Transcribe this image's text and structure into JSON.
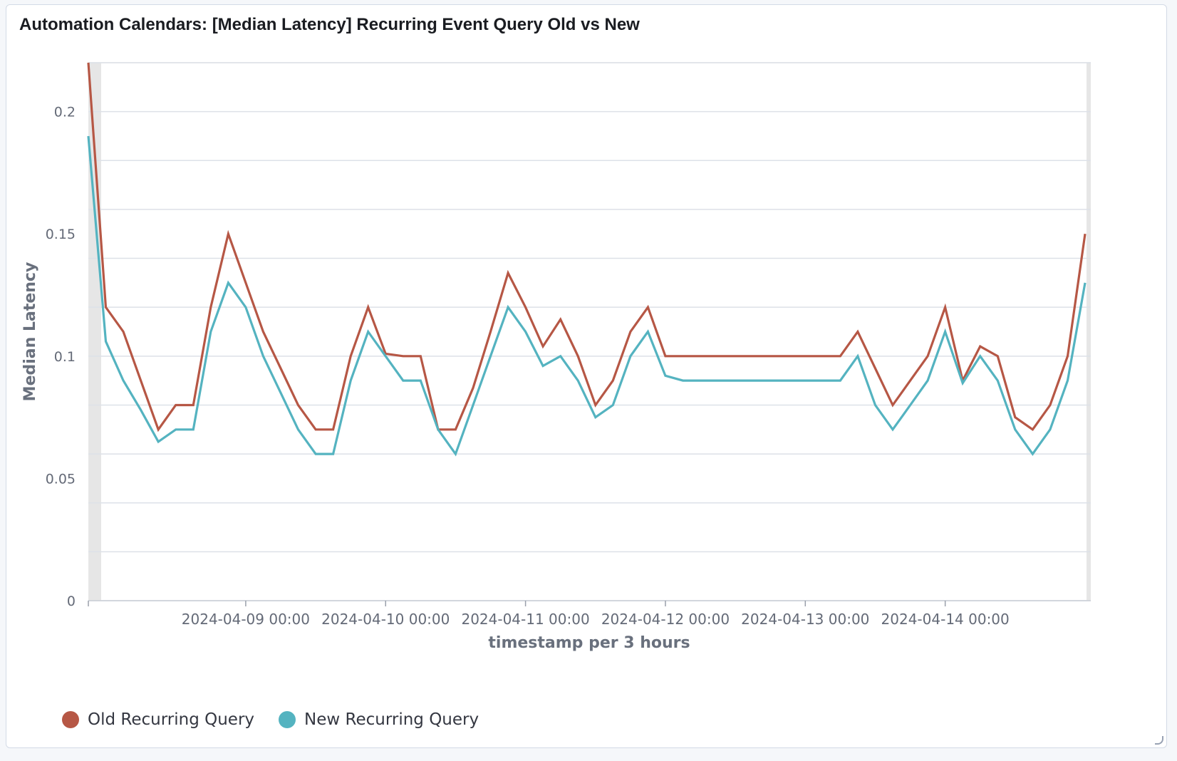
{
  "panel": {
    "title": "Automation Calendars: [Median Latency] Recurring Event Query Old vs New"
  },
  "chart_data": {
    "type": "line",
    "title": "Automation Calendars: [Median Latency] Recurring Event Query Old vs New",
    "xlabel": "timestamp per 3 hours",
    "ylabel": "Median Latency",
    "x_unit": "3 hours",
    "x_start": "2024-04-07 21:00",
    "x_ticks": [
      "2024-04-09 00:00",
      "2024-04-10 00:00",
      "2024-04-11 00:00",
      "2024-04-12 00:00",
      "2024-04-13 00:00",
      "2024-04-14 00:00"
    ],
    "y_ticks": [
      0,
      0.05,
      0.1,
      0.15,
      0.2
    ],
    "y_tick_labels": [
      "0",
      "0.05",
      "0.1",
      "0.15",
      "0.2"
    ],
    "ylim": [
      0,
      0.22
    ],
    "grid": true,
    "legend_position": "bottom-left",
    "series": [
      {
        "name": "Old Recurring Query",
        "color": "#b65745",
        "values": [
          0.22,
          0.12,
          0.11,
          0.09,
          0.07,
          0.08,
          0.08,
          0.12,
          0.15,
          0.13,
          0.11,
          0.095,
          0.08,
          0.07,
          0.07,
          0.1,
          0.12,
          0.101,
          0.1,
          0.1,
          0.07,
          0.07,
          0.087,
          0.11,
          0.134,
          0.12,
          0.104,
          0.115,
          0.1,
          0.08,
          0.09,
          0.11,
          0.12,
          0.1,
          0.1,
          0.1,
          0.1,
          0.1,
          0.1,
          0.1,
          0.1,
          0.1,
          0.1,
          0.1,
          0.11,
          0.095,
          0.08,
          0.09,
          0.1,
          0.12,
          0.09,
          0.104,
          0.1,
          0.075,
          0.07,
          0.08,
          0.1,
          0.15
        ]
      },
      {
        "name": "New Recurring Query",
        "color": "#54b3c0",
        "values": [
          0.19,
          0.106,
          0.09,
          0.078,
          0.065,
          0.07,
          0.07,
          0.11,
          0.13,
          0.12,
          0.1,
          0.085,
          0.07,
          0.06,
          0.06,
          0.09,
          0.11,
          0.1,
          0.09,
          0.09,
          0.07,
          0.06,
          0.08,
          0.1,
          0.12,
          0.11,
          0.096,
          0.1,
          0.09,
          0.075,
          0.08,
          0.1,
          0.11,
          0.092,
          0.09,
          0.09,
          0.09,
          0.09,
          0.09,
          0.09,
          0.09,
          0.09,
          0.09,
          0.09,
          0.1,
          0.08,
          0.07,
          0.08,
          0.09,
          0.11,
          0.089,
          0.1,
          0.09,
          0.07,
          0.06,
          0.07,
          0.09,
          0.13
        ]
      }
    ]
  }
}
